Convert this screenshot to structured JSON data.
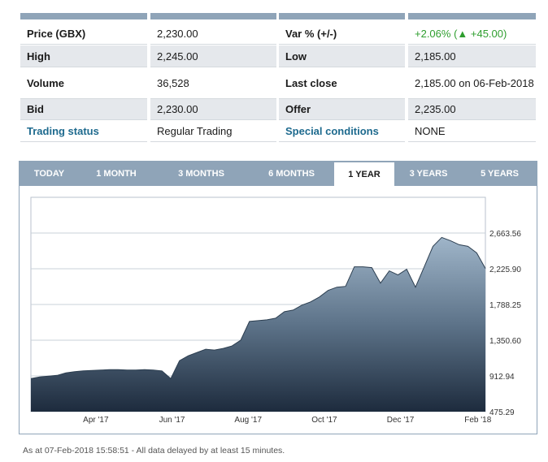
{
  "stats": {
    "rows": [
      {
        "c1": "Price (GBX)",
        "c2": "2,230.00",
        "c3": "Var % (+/-)",
        "c4": "+2.06% (▲ +45.00)"
      },
      {
        "c1": "High",
        "c2": "2,245.00",
        "c3": "Low",
        "c4": "2,185.00"
      },
      {
        "c1": "Volume",
        "c2": "36,528",
        "c3": "Last close",
        "c4": "2,185.00 on 06-Feb-2018"
      },
      {
        "c1": "Bid",
        "c2": "2,230.00",
        "c3": "Offer",
        "c4": "2,235.00"
      },
      {
        "c1": "Trading status",
        "c2": "Regular Trading",
        "c3": "Special conditions",
        "c4": "NONE"
      }
    ],
    "var_color": "#2e9e2e",
    "link_color": "#1e6a8e"
  },
  "tabs": {
    "items": [
      "TODAY",
      "1 MONTH",
      "3 MONTHS",
      "6 MONTHS",
      "1 YEAR",
      "3 YEARS",
      "5 YEARS"
    ],
    "active": "1 YEAR"
  },
  "chart_data": {
    "type": "area",
    "x_ticks": [
      "Apr '17",
      "Jun '17",
      "Aug '17",
      "Oct '17",
      "Dec '17",
      "Feb '18"
    ],
    "y_ticks": [
      475.29,
      912.94,
      1350.6,
      1788.25,
      2225.9,
      2663.56
    ],
    "y_tick_labels": [
      "475.29",
      "912.94",
      "1,350.60",
      "1,788.25",
      "2,225.90",
      "2,663.56"
    ],
    "ylim": [
      475.29,
      3101.21
    ],
    "grid": true,
    "x": [
      "2017-02-08",
      "2017-02-15",
      "2017-02-22",
      "2017-03-01",
      "2017-03-08",
      "2017-03-15",
      "2017-03-22",
      "2017-03-29",
      "2017-04-05",
      "2017-04-12",
      "2017-04-19",
      "2017-04-26",
      "2017-05-03",
      "2017-05-10",
      "2017-05-17",
      "2017-05-24",
      "2017-05-31",
      "2017-06-07",
      "2017-06-14",
      "2017-06-21",
      "2017-06-28",
      "2017-07-05",
      "2017-07-12",
      "2017-07-19",
      "2017-07-26",
      "2017-08-02",
      "2017-08-09",
      "2017-08-16",
      "2017-08-23",
      "2017-08-30",
      "2017-09-06",
      "2017-09-13",
      "2017-09-20",
      "2017-09-27",
      "2017-10-04",
      "2017-10-11",
      "2017-10-18",
      "2017-10-25",
      "2017-11-01",
      "2017-11-08",
      "2017-11-15",
      "2017-11-22",
      "2017-11-29",
      "2017-12-06",
      "2017-12-13",
      "2017-12-20",
      "2017-12-27",
      "2018-01-03",
      "2018-01-10",
      "2018-01-17",
      "2018-01-24",
      "2018-01-31",
      "2018-02-07"
    ],
    "values": [
      880,
      900,
      910,
      920,
      950,
      965,
      975,
      980,
      985,
      990,
      990,
      985,
      985,
      990,
      985,
      975,
      880,
      1100,
      1160,
      1200,
      1240,
      1230,
      1250,
      1280,
      1350,
      1580,
      1590,
      1600,
      1620,
      1700,
      1720,
      1780,
      1820,
      1880,
      1960,
      2000,
      2010,
      2250,
      2250,
      2240,
      2050,
      2200,
      2150,
      2220,
      2000,
      2250,
      2500,
      2610,
      2570,
      2520,
      2500,
      2420,
      2230
    ]
  },
  "footer": {
    "text": "As at 07-Feb-2018 15:58:51 -  All data delayed by at least 15 minutes."
  }
}
